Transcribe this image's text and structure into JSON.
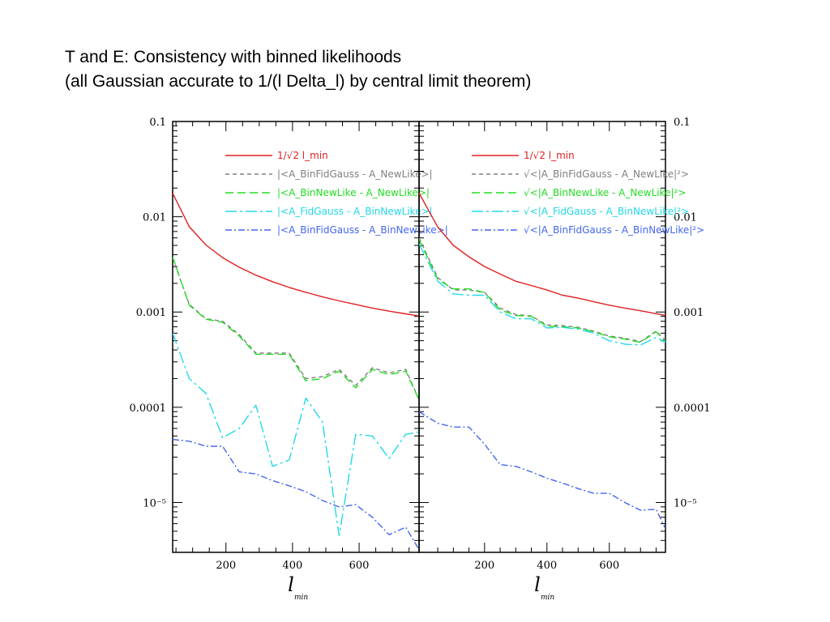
{
  "page": {
    "title_line1": "T and E: Consistency with binned likelihoods",
    "title_line2": "(all Gaussian accurate to 1/(l Delta_l) by central limit theorem)"
  },
  "chart_data": [
    {
      "type": "line",
      "panel": "left",
      "xlabel": "l",
      "xlabel_subscript": "min",
      "ylabel": "",
      "xlim": [
        40,
        780
      ],
      "ylim": [
        3e-06,
        0.1
      ],
      "yscale": "log",
      "xticks": [
        200,
        400,
        600
      ],
      "xtick_labels": [
        "200",
        "400",
        "600"
      ],
      "yticks": [
        0.1,
        0.01,
        0.001,
        0.0001,
        1e-05
      ],
      "ytick_labels": [
        "0.1",
        "0.01",
        "0.001",
        "0.0001",
        "10⁻⁵"
      ],
      "ytick_side": "left",
      "legend_position": "top-right",
      "series": [
        {
          "name": "1/√2 l_min",
          "color": "#e02020",
          "dash": "solid",
          "x": [
            40,
            90,
            140,
            190,
            240,
            290,
            340,
            390,
            440,
            490,
            540,
            590,
            640,
            690,
            740,
            780
          ],
          "y": [
            0.0177,
            0.00786,
            0.00505,
            0.00372,
            0.00295,
            0.00244,
            0.00208,
            0.00181,
            0.00161,
            0.00144,
            0.00131,
            0.0012,
            0.0011,
            0.00102,
            0.000956,
            0.000907
          ]
        },
        {
          "name": "|<A_BinFidGauss - A_NewLike>|",
          "color": "#808080",
          "dash": "5,4",
          "x": [
            40,
            90,
            140,
            190,
            240,
            290,
            340,
            390,
            440,
            490,
            540,
            590,
            640,
            690,
            740,
            780
          ],
          "y": [
            0.0037,
            0.0012,
            0.00085,
            0.0008,
            0.00058,
            0.00037,
            0.00037,
            0.00037,
            0.0002,
            0.00021,
            0.00025,
            0.00017,
            0.00026,
            0.00023,
            0.00025,
            0.00012
          ]
        },
        {
          "name": "|<A_BinNewLike - A_NewLike>|",
          "color": "#22dd22",
          "dash": "10,5",
          "x": [
            40,
            90,
            140,
            190,
            240,
            290,
            340,
            390,
            440,
            490,
            540,
            590,
            640,
            690,
            740,
            780
          ],
          "y": [
            0.0038,
            0.00118,
            0.00084,
            0.00078,
            0.00056,
            0.00036,
            0.00036,
            0.00036,
            0.00019,
            0.0002,
            0.00024,
            0.00016,
            0.00025,
            0.00022,
            0.00024,
            0.00012
          ]
        },
        {
          "name": "|<A_FidGauss - A_BinNewLike>|",
          "color": "#22d8e8",
          "dash": "14,4,3,4",
          "x": [
            40,
            90,
            140,
            190,
            240,
            290,
            340,
            390,
            440,
            490,
            540,
            590,
            640,
            690,
            740,
            780
          ],
          "y": [
            0.0006,
            0.0002,
            0.00014,
            4.8e-05,
            6e-05,
            0.000105,
            2.4e-05,
            2.8e-05,
            0.000125,
            7e-05,
            4.5e-06,
            5.2e-05,
            5e-05,
            2.9e-05,
            5.2e-05,
            5.5e-05
          ]
        },
        {
          "name": "|<A_BinFidGauss - A_BinNewLike>|",
          "color": "#4466ee",
          "dash": "8,3,2,3",
          "x": [
            40,
            90,
            140,
            190,
            240,
            290,
            340,
            390,
            440,
            490,
            540,
            590,
            640,
            690,
            740,
            780
          ],
          "y": [
            4.6e-05,
            4.4e-05,
            3.9e-05,
            3.9e-05,
            2.1e-05,
            2e-05,
            1.7e-05,
            1.5e-05,
            1.3e-05,
            1.05e-05,
            9e-06,
            9.5e-06,
            7e-06,
            4.6e-06,
            5.5e-06,
            3.2e-06
          ]
        }
      ]
    },
    {
      "type": "line",
      "panel": "right",
      "xlabel": "l",
      "xlabel_subscript": "min",
      "ylabel": "",
      "xlim": [
        -10,
        780
      ],
      "ylim": [
        3e-06,
        0.1
      ],
      "yscale": "log",
      "xticks": [
        200,
        400,
        600
      ],
      "xtick_labels": [
        "200",
        "400",
        "600"
      ],
      "yticks": [
        0.1,
        0.01,
        0.001,
        0.0001,
        1e-05
      ],
      "ytick_labels": [
        "0.1",
        "0.01",
        "0.001",
        "0.0001",
        "10⁻⁵"
      ],
      "ytick_side": "right",
      "legend_position": "top-right",
      "series": [
        {
          "name": "1/√2 l_min",
          "color": "#e02020",
          "dash": "solid",
          "x": [
            -10,
            50,
            100,
            150,
            200,
            250,
            300,
            350,
            400,
            450,
            500,
            550,
            600,
            650,
            700,
            750,
            780
          ],
          "y": [
            0.0177,
            0.0078,
            0.005,
            0.0038,
            0.003,
            0.0025,
            0.0021,
            0.0019,
            0.0017,
            0.0015,
            0.0014,
            0.00128,
            0.00118,
            0.0011,
            0.00103,
            0.00096,
            0.00092
          ]
        },
        {
          "name": "√<|A_BinFidGauss - A_NewLike|²>",
          "color": "#808080",
          "dash": "5,4",
          "x": [
            -10,
            50,
            100,
            150,
            200,
            250,
            300,
            350,
            400,
            450,
            500,
            550,
            600,
            650,
            700,
            750,
            780
          ],
          "y": [
            0.006,
            0.0023,
            0.0017,
            0.0017,
            0.0016,
            0.0011,
            0.00094,
            0.00091,
            0.00073,
            0.00072,
            0.00069,
            0.00063,
            0.00056,
            0.00053,
            0.00049,
            0.00063,
            0.0005
          ]
        },
        {
          "name": "√<|A_BinNewLike - A_NewLike|²>",
          "color": "#22dd22",
          "dash": "10,5",
          "x": [
            -10,
            50,
            100,
            150,
            200,
            250,
            300,
            350,
            400,
            450,
            500,
            550,
            600,
            650,
            700,
            750,
            780
          ],
          "y": [
            0.0058,
            0.0022,
            0.00175,
            0.00175,
            0.0016,
            0.00105,
            0.00092,
            0.0009,
            0.00071,
            0.0007,
            0.00068,
            0.00062,
            0.00055,
            0.00052,
            0.00048,
            0.00062,
            0.00049
          ]
        },
        {
          "name": "√<|A_FidGauss - A_BinNewLike|²>",
          "color": "#22d8e8",
          "dash": "14,4,3,4",
          "x": [
            -10,
            50,
            100,
            150,
            200,
            250,
            300,
            350,
            400,
            450,
            500,
            550,
            600,
            650,
            700,
            750,
            780
          ],
          "y": [
            0.0052,
            0.0021,
            0.00155,
            0.0015,
            0.0015,
            0.001,
            0.00085,
            0.00085,
            0.00068,
            0.00069,
            0.00066,
            0.0006,
            0.0005,
            0.00046,
            0.00045,
            0.00054,
            0.00048
          ]
        },
        {
          "name": "√<|A_BinFidGauss - A_BinNewLike|²>",
          "color": "#4466ee",
          "dash": "8,3,2,3",
          "x": [
            -10,
            50,
            100,
            150,
            200,
            250,
            300,
            350,
            400,
            450,
            500,
            550,
            600,
            650,
            700,
            750,
            780
          ],
          "y": [
            9e-05,
            6.8e-05,
            6.2e-05,
            6.2e-05,
            4.1e-05,
            2.5e-05,
            2.4e-05,
            2.1e-05,
            1.8e-05,
            1.6e-05,
            1.4e-05,
            1.25e-05,
            1.25e-05,
            1e-05,
            8.3e-06,
            8.5e-06,
            5.3e-06
          ]
        }
      ]
    }
  ]
}
